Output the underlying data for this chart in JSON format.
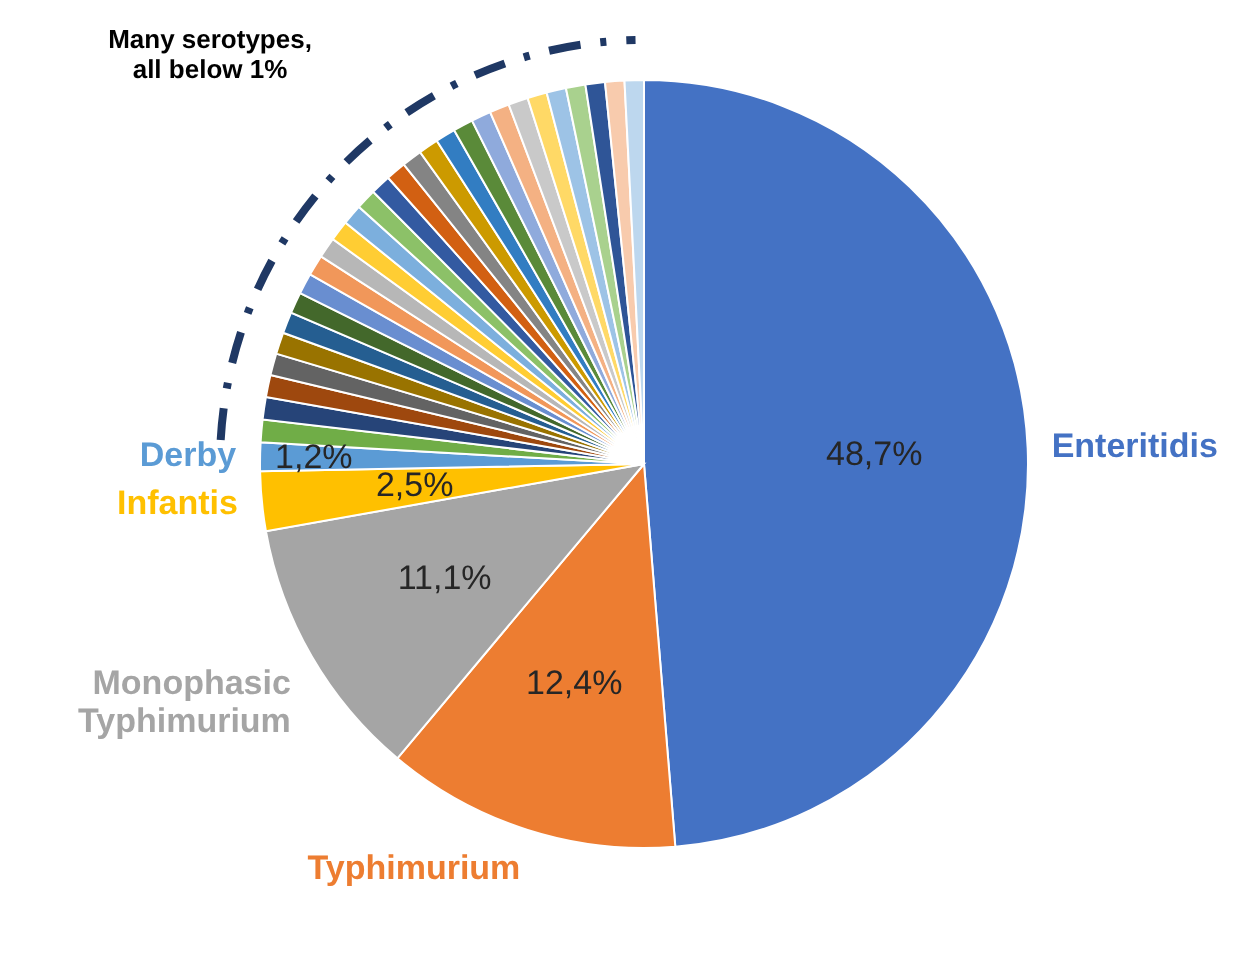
{
  "chart_data": {
    "type": "pie",
    "categories": [
      "Enteritidis",
      "Typhimurium",
      "Monophasic Typhimurium",
      "Infantis",
      "Derby",
      null,
      null,
      null,
      null,
      null,
      null,
      null,
      null,
      null,
      null,
      null,
      null,
      null,
      null,
      null,
      null,
      null,
      null,
      null,
      null,
      null,
      null,
      null,
      null,
      null,
      null,
      null,
      null
    ],
    "values": [
      48.7,
      12.4,
      11.1,
      2.5,
      1.2,
      0.95,
      0.94,
      0.93,
      0.92,
      0.91,
      0.9,
      0.89,
      0.88,
      0.87,
      0.87,
      0.86,
      0.86,
      0.86,
      0.85,
      0.85,
      0.85,
      0.84,
      0.84,
      0.84,
      0.83,
      0.83,
      0.83,
      0.82,
      0.82,
      0.82,
      0.82,
      0.81,
      0.81
    ],
    "value_labels": [
      "48,7%",
      "12,4%",
      "11,1%",
      "2,5%",
      "1,2%",
      null,
      null,
      null,
      null,
      null,
      null,
      null,
      null,
      null,
      null,
      null,
      null,
      null,
      null,
      null,
      null,
      null,
      null,
      null,
      null,
      null,
      null,
      null,
      null,
      null,
      null,
      null,
      null
    ],
    "colors": [
      "#4472c4",
      "#ed7d31",
      "#a5a5a5",
      "#ffc000",
      "#5b9bd5",
      "#70ad47",
      "#264478",
      "#9e480e",
      "#636363",
      "#997300",
      "#255e91",
      "#43682b",
      "#698ed0",
      "#f1975a",
      "#b7b7b7",
      "#ffcd33",
      "#7cafdd",
      "#8cc168",
      "#335aa1",
      "#d26012",
      "#848484",
      "#cc9a00",
      "#327dc2",
      "#5a8a39",
      "#8faadc",
      "#f4b183",
      "#c9c9c9",
      "#ffd966",
      "#9dc3e6",
      "#a9d18e",
      "#2f5597",
      "#f8cbad",
      "#bdd7ee"
    ],
    "annotations": [
      "Many serotypes,\nall below 1%"
    ]
  }
}
